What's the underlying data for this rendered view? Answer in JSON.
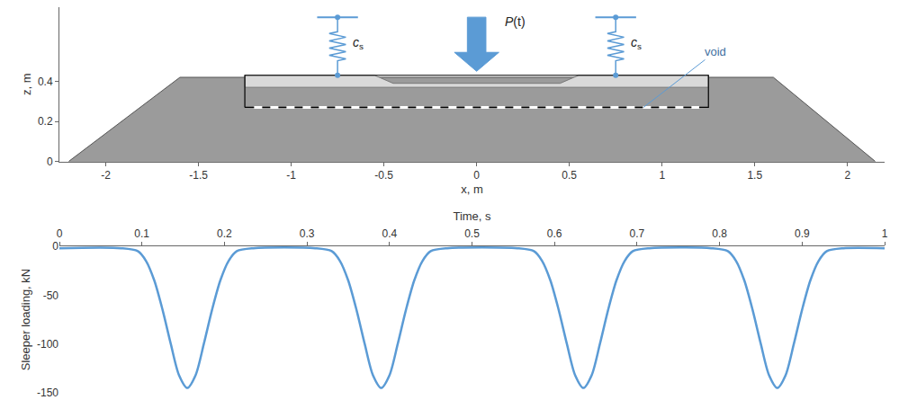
{
  "chart_data": [
    {
      "type": "section",
      "x_label": "x, m",
      "y_label": "z, m",
      "xlim": [
        -2.25,
        2.2
      ],
      "xticks": [
        -2,
        -1.5,
        -1,
        -0.5,
        0,
        0.5,
        1,
        1.5,
        2
      ],
      "ylim": [
        0,
        0.77
      ],
      "yticks": [
        0,
        0.2,
        0.4
      ],
      "ballast": {
        "x": [
          -2.2,
          -1.6,
          1.6,
          2.15
        ],
        "z": [
          0,
          0.42,
          0.42,
          0
        ],
        "color": "#9b9b9b"
      },
      "sleeper": {
        "x": [
          -1.25,
          -0.55,
          -0.45,
          0.45,
          0.55,
          1.25,
          1.25,
          -1.25
        ],
        "z": [
          0.43,
          0.43,
          0.39,
          0.39,
          0.43,
          0.43,
          0.37,
          0.37
        ],
        "color": "#d9d9d9"
      },
      "sleeper_box": {
        "x": [
          -1.25,
          1.25
        ],
        "z": [
          0.27,
          0.43
        ]
      },
      "void": {
        "label": "void",
        "x": [
          -1.2,
          1.2
        ],
        "z": 0.27
      },
      "springs": {
        "x": [
          -0.75,
          0.75
        ],
        "z": [
          0.43,
          0.72
        ],
        "label": "c",
        "label_subscript": "s",
        "color": "#5b9bd5"
      },
      "load": {
        "label": "P(t)",
        "x": 0,
        "z": [
          0.72,
          0.45
        ],
        "color": "#5b9bd5"
      }
    },
    {
      "type": "line",
      "x_label": "Time, s",
      "y_label": "Sleeper loading, kN",
      "xlim": [
        0,
        1
      ],
      "xticks": [
        0,
        0.1,
        0.2,
        0.3,
        0.4,
        0.5,
        0.6,
        0.7,
        0.8,
        0.9,
        1
      ],
      "ylim": [
        -150,
        0
      ],
      "yticks": [
        -150,
        -100,
        -50,
        0
      ],
      "grid": false,
      "color": "#5b9bd5",
      "x": [
        0,
        0.075,
        0.095,
        0.105,
        0.115,
        0.125,
        0.135,
        0.145,
        0.155,
        0.165,
        0.175,
        0.185,
        0.195,
        0.205,
        0.215,
        0.235,
        0.31,
        0.33,
        0.34,
        0.35,
        0.36,
        0.37,
        0.38,
        0.39,
        0.4,
        0.41,
        0.42,
        0.43,
        0.44,
        0.45,
        0.47,
        0.555,
        0.575,
        0.585,
        0.595,
        0.605,
        0.615,
        0.625,
        0.635,
        0.645,
        0.655,
        0.665,
        0.675,
        0.685,
        0.695,
        0.715,
        0.79,
        0.81,
        0.82,
        0.83,
        0.84,
        0.85,
        0.86,
        0.87,
        0.88,
        0.89,
        0.9,
        0.91,
        0.92,
        0.93,
        0.95,
        1
      ],
      "values": [
        -2,
        -2,
        -5,
        -15,
        -35,
        -65,
        -100,
        -132,
        -145,
        -132,
        -100,
        -65,
        -35,
        -15,
        -5,
        -2,
        -2,
        -5,
        -15,
        -35,
        -65,
        -100,
        -132,
        -145,
        -132,
        -100,
        -65,
        -35,
        -15,
        -5,
        -2,
        -2,
        -5,
        -15,
        -35,
        -65,
        -100,
        -132,
        -145,
        -132,
        -100,
        -65,
        -35,
        -15,
        -5,
        -2,
        -2,
        -5,
        -15,
        -35,
        -65,
        -100,
        -132,
        -145,
        -132,
        -100,
        -65,
        -35,
        -15,
        -5,
        -2,
        -2
      ]
    }
  ]
}
